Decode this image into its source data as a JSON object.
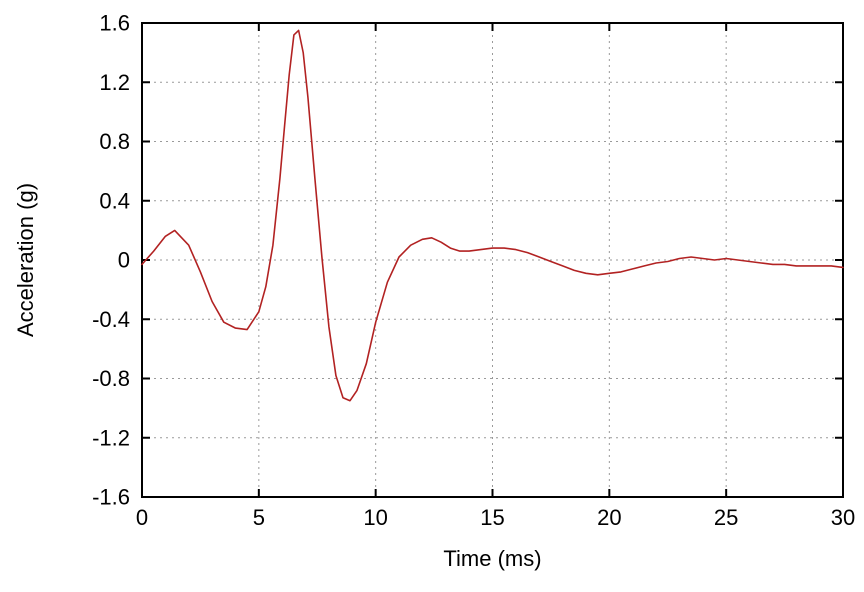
{
  "chart_data": {
    "type": "line",
    "title": "",
    "xlabel": "Time (ms)",
    "ylabel": "Acceleration (g)",
    "xlim": [
      0,
      30
    ],
    "ylim": [
      -1.6,
      1.6
    ],
    "grid": true,
    "legend": "none",
    "x_ticks": {
      "values": [
        0,
        5,
        10,
        15,
        20,
        25,
        30
      ],
      "labels": [
        "0",
        "5",
        "10",
        "15",
        "20",
        "25",
        "30"
      ]
    },
    "y_ticks": {
      "values": [
        1.6,
        1.2,
        0.8,
        0.4,
        0,
        -0.4,
        -0.8,
        -1.2,
        -1.6
      ],
      "labels": [
        "1.6",
        "1.2",
        "0.8",
        "0.4",
        "0",
        "-0.4",
        "-0.8",
        "-1.2",
        "-1.6"
      ]
    },
    "colors": {
      "line": "#b22222",
      "grid": "#9a9a9a",
      "axis": "#000000",
      "background": "#ffffff"
    },
    "series": [
      {
        "name": "acceleration",
        "x": [
          0,
          0.5,
          1.0,
          1.4,
          2.0,
          2.5,
          3.0,
          3.5,
          4.0,
          4.5,
          5.0,
          5.3,
          5.6,
          5.9,
          6.1,
          6.3,
          6.5,
          6.7,
          6.9,
          7.1,
          7.4,
          7.7,
          8.0,
          8.3,
          8.6,
          8.9,
          9.2,
          9.6,
          10.0,
          10.5,
          11.0,
          11.5,
          12.0,
          12.4,
          12.8,
          13.2,
          13.6,
          14.0,
          14.5,
          15.0,
          15.5,
          16.0,
          16.5,
          17.0,
          17.5,
          18.0,
          18.5,
          19.0,
          19.5,
          20.0,
          20.5,
          21.0,
          21.5,
          22.0,
          22.5,
          23.0,
          23.5,
          24.0,
          24.5,
          25.0,
          25.5,
          26.0,
          26.5,
          27.0,
          27.5,
          28.0,
          28.5,
          29.0,
          29.5,
          30.0
        ],
        "y": [
          -0.03,
          0.06,
          0.16,
          0.2,
          0.1,
          -0.08,
          -0.28,
          -0.42,
          -0.46,
          -0.47,
          -0.35,
          -0.18,
          0.1,
          0.55,
          0.9,
          1.25,
          1.52,
          1.55,
          1.4,
          1.1,
          0.55,
          0.02,
          -0.45,
          -0.78,
          -0.93,
          -0.95,
          -0.88,
          -0.7,
          -0.42,
          -0.15,
          0.02,
          0.1,
          0.14,
          0.15,
          0.12,
          0.08,
          0.06,
          0.06,
          0.07,
          0.08,
          0.08,
          0.07,
          0.05,
          0.02,
          -0.01,
          -0.04,
          -0.07,
          -0.09,
          -0.1,
          -0.09,
          -0.08,
          -0.06,
          -0.04,
          -0.02,
          -0.01,
          0.01,
          0.02,
          0.01,
          0.0,
          0.01,
          0.0,
          -0.01,
          -0.02,
          -0.03,
          -0.03,
          -0.04,
          -0.04,
          -0.04,
          -0.04,
          -0.05
        ]
      }
    ]
  }
}
